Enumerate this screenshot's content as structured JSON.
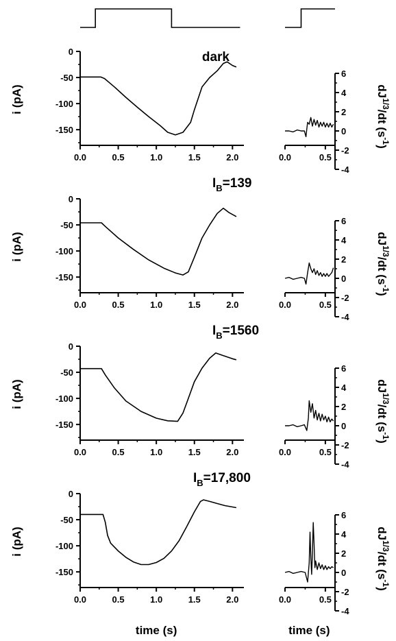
{
  "figure": {
    "axis_titles": {
      "left_y": "i (pA)",
      "right_y_main": "dJ",
      "right_y_exp": "1/3",
      "right_y_tail": "/dt  (s",
      "right_y_exp2": "-1",
      "right_y_end": ")",
      "x_left": "time (s)",
      "x_right": "time (s)"
    },
    "panel_labels": [
      {
        "text": "dark",
        "base": "",
        "sub": "",
        "rest": ""
      },
      {
        "text": "",
        "base": "I",
        "sub": "B",
        "rest": "=139"
      },
      {
        "text": "",
        "base": "I",
        "sub": "B",
        "rest": "=1560"
      },
      {
        "text": "",
        "base": "I",
        "sub": "B",
        "rest": "=17,800"
      }
    ],
    "left_axes": {
      "xlim": [
        0,
        2.15
      ],
      "ylim": [
        -180,
        0
      ],
      "xticks": [
        "0.0",
        "0.5",
        "1.0",
        "1.5",
        "2.0"
      ],
      "yticks": [
        "0",
        "-50",
        "-100",
        "-150"
      ]
    },
    "right_axes": {
      "xlim": [
        0,
        0.62
      ],
      "ylim": [
        -4,
        7
      ],
      "xticks": [
        "0.0",
        "0.5"
      ],
      "yticks": [
        "6",
        "4",
        "2",
        "0",
        "-2",
        "-4"
      ]
    },
    "stimulus": {
      "left": {
        "on": 0.2,
        "off": 1.2,
        "x_end": 2.1
      },
      "right": {
        "on": 0.2,
        "x_end": 0.62
      }
    },
    "colors": {
      "line": "#000000",
      "background": "#ffffff"
    }
  },
  "chart_data": [
    {
      "type": "line",
      "panel": 1,
      "title": "dark",
      "xlabel": "",
      "ylabel": "i (pA)",
      "xlim": [
        0,
        2.15
      ],
      "ylim": [
        -180,
        0
      ],
      "series": [
        {
          "points": [
            [
              0.0,
              -49
            ],
            [
              0.27,
              -49
            ],
            [
              0.32,
              -52
            ],
            [
              0.45,
              -68
            ],
            [
              0.6,
              -88
            ],
            [
              0.75,
              -107
            ],
            [
              0.9,
              -125
            ],
            [
              1.05,
              -142
            ],
            [
              1.15,
              -155
            ],
            [
              1.25,
              -160
            ],
            [
              1.35,
              -155
            ],
            [
              1.45,
              -136
            ],
            [
              1.5,
              -112
            ],
            [
              1.6,
              -68
            ],
            [
              1.7,
              -50
            ],
            [
              1.8,
              -37
            ],
            [
              1.88,
              -23
            ],
            [
              1.93,
              -20
            ],
            [
              2.0,
              -27
            ],
            [
              2.05,
              -30
            ]
          ]
        }
      ]
    },
    {
      "type": "line",
      "panel": 1,
      "xlabel": "",
      "ylabel": "dJ1/3/dt (s-1)",
      "xlim": [
        0,
        0.62
      ],
      "ylim": [
        -4,
        7
      ],
      "series": [
        {
          "points": [
            [
              0.0,
              0.0
            ],
            [
              0.05,
              0.0
            ],
            [
              0.1,
              -0.1
            ],
            [
              0.15,
              0.1
            ],
            [
              0.2,
              0.0
            ],
            [
              0.24,
              0.0
            ],
            [
              0.26,
              -0.6
            ],
            [
              0.27,
              0.2
            ],
            [
              0.28,
              0.9
            ],
            [
              0.3,
              0.7
            ],
            [
              0.32,
              1.4
            ],
            [
              0.34,
              0.5
            ],
            [
              0.36,
              1.2
            ],
            [
              0.38,
              0.6
            ],
            [
              0.4,
              1.1
            ],
            [
              0.42,
              0.4
            ],
            [
              0.44,
              0.9
            ],
            [
              0.46,
              0.5
            ],
            [
              0.48,
              0.9
            ],
            [
              0.5,
              0.4
            ],
            [
              0.52,
              0.8
            ],
            [
              0.54,
              0.4
            ],
            [
              0.56,
              0.8
            ],
            [
              0.58,
              0.4
            ],
            [
              0.6,
              0.7
            ]
          ]
        }
      ]
    },
    {
      "type": "line",
      "panel": 2,
      "xlabel": "",
      "ylabel": "i (pA)",
      "xlim": [
        0,
        2.15
      ],
      "ylim": [
        -180,
        0
      ],
      "series": [
        {
          "points": [
            [
              0.0,
              -46
            ],
            [
              0.28,
              -46
            ],
            [
              0.33,
              -53
            ],
            [
              0.5,
              -75
            ],
            [
              0.7,
              -97
            ],
            [
              0.9,
              -117
            ],
            [
              1.1,
              -133
            ],
            [
              1.25,
              -142
            ],
            [
              1.35,
              -146
            ],
            [
              1.42,
              -140
            ],
            [
              1.5,
              -112
            ],
            [
              1.6,
              -75
            ],
            [
              1.7,
              -50
            ],
            [
              1.8,
              -28
            ],
            [
              1.88,
              -18
            ],
            [
              1.95,
              -26
            ],
            [
              2.05,
              -34
            ]
          ]
        }
      ]
    },
    {
      "type": "line",
      "panel": 2,
      "xlabel": "",
      "ylabel": "dJ1/3/dt (s-1)",
      "xlim": [
        0,
        0.62
      ],
      "ylim": [
        -4,
        7
      ],
      "series": [
        {
          "points": [
            [
              0.0,
              0.0
            ],
            [
              0.05,
              0.1
            ],
            [
              0.1,
              -0.1
            ],
            [
              0.15,
              0.0
            ],
            [
              0.2,
              0.1
            ],
            [
              0.24,
              0.0
            ],
            [
              0.26,
              -0.6
            ],
            [
              0.28,
              0.6
            ],
            [
              0.3,
              1.6
            ],
            [
              0.32,
              1.0
            ],
            [
              0.34,
              0.6
            ],
            [
              0.36,
              1.0
            ],
            [
              0.38,
              0.4
            ],
            [
              0.4,
              0.8
            ],
            [
              0.42,
              0.3
            ],
            [
              0.44,
              0.6
            ],
            [
              0.46,
              0.2
            ],
            [
              0.48,
              0.5
            ],
            [
              0.5,
              0.2
            ],
            [
              0.52,
              0.5
            ],
            [
              0.54,
              0.2
            ],
            [
              0.56,
              0.4
            ],
            [
              0.58,
              0.6
            ],
            [
              0.6,
              1.1
            ]
          ]
        }
      ]
    },
    {
      "type": "line",
      "panel": 3,
      "xlabel": "",
      "ylabel": "i (pA)",
      "xlim": [
        0,
        2.15
      ],
      "ylim": [
        -180,
        0
      ],
      "series": [
        {
          "points": [
            [
              0.0,
              -43
            ],
            [
              0.28,
              -43
            ],
            [
              0.33,
              -55
            ],
            [
              0.45,
              -80
            ],
            [
              0.6,
              -105
            ],
            [
              0.8,
              -125
            ],
            [
              1.0,
              -138
            ],
            [
              1.15,
              -143
            ],
            [
              1.28,
              -144
            ],
            [
              1.35,
              -128
            ],
            [
              1.42,
              -100
            ],
            [
              1.5,
              -68
            ],
            [
              1.6,
              -42
            ],
            [
              1.7,
              -23
            ],
            [
              1.78,
              -13
            ],
            [
              1.88,
              -18
            ],
            [
              2.0,
              -24
            ],
            [
              2.05,
              -26
            ]
          ]
        }
      ]
    },
    {
      "type": "line",
      "panel": 3,
      "xlabel": "",
      "ylabel": "dJ1/3/dt (s-1)",
      "xlim": [
        0,
        0.62
      ],
      "ylim": [
        -4,
        7
      ],
      "series": [
        {
          "points": [
            [
              0.0,
              0.0
            ],
            [
              0.05,
              0.0
            ],
            [
              0.1,
              0.1
            ],
            [
              0.15,
              -0.1
            ],
            [
              0.2,
              0.0
            ],
            [
              0.24,
              0.1
            ],
            [
              0.27,
              -0.5
            ],
            [
              0.29,
              0.8
            ],
            [
              0.3,
              2.6
            ],
            [
              0.32,
              1.4
            ],
            [
              0.34,
              2.3
            ],
            [
              0.36,
              0.8
            ],
            [
              0.38,
              1.6
            ],
            [
              0.4,
              0.6
            ],
            [
              0.42,
              1.3
            ],
            [
              0.44,
              0.5
            ],
            [
              0.46,
              1.2
            ],
            [
              0.48,
              0.6
            ],
            [
              0.5,
              1.0
            ],
            [
              0.52,
              0.4
            ],
            [
              0.54,
              0.9
            ],
            [
              0.56,
              0.4
            ],
            [
              0.58,
              0.7
            ],
            [
              0.6,
              0.5
            ]
          ]
        }
      ]
    },
    {
      "type": "line",
      "panel": 4,
      "xlabel": "time (s)",
      "ylabel": "i (pA)",
      "xlim": [
        0,
        2.15
      ],
      "ylim": [
        -180,
        0
      ],
      "series": [
        {
          "points": [
            [
              0.0,
              -40
            ],
            [
              0.3,
              -40
            ],
            [
              0.33,
              -55
            ],
            [
              0.36,
              -80
            ],
            [
              0.4,
              -95
            ],
            [
              0.5,
              -110
            ],
            [
              0.6,
              -122
            ],
            [
              0.7,
              -131
            ],
            [
              0.8,
              -136
            ],
            [
              0.9,
              -136
            ],
            [
              1.0,
              -132
            ],
            [
              1.1,
              -124
            ],
            [
              1.2,
              -110
            ],
            [
              1.3,
              -90
            ],
            [
              1.4,
              -63
            ],
            [
              1.5,
              -35
            ],
            [
              1.58,
              -15
            ],
            [
              1.62,
              -12
            ],
            [
              1.7,
              -15
            ],
            [
              1.8,
              -19
            ],
            [
              1.9,
              -23
            ],
            [
              2.05,
              -27
            ]
          ]
        }
      ]
    },
    {
      "type": "line",
      "panel": 4,
      "xlabel": "time (s)",
      "ylabel": "dJ1/3/dt (s-1)",
      "xlim": [
        0,
        0.62
      ],
      "ylim": [
        -4,
        7
      ],
      "series": [
        {
          "points": [
            [
              0.0,
              0.0
            ],
            [
              0.05,
              0.1
            ],
            [
              0.1,
              -0.1
            ],
            [
              0.15,
              0.0
            ],
            [
              0.2,
              0.1
            ],
            [
              0.25,
              0.0
            ],
            [
              0.28,
              -1.0
            ],
            [
              0.3,
              1.0
            ],
            [
              0.31,
              4.2
            ],
            [
              0.32,
              1.5
            ],
            [
              0.33,
              -0.2
            ],
            [
              0.34,
              2.0
            ],
            [
              0.35,
              5.2
            ],
            [
              0.36,
              3.0
            ],
            [
              0.37,
              0.5
            ],
            [
              0.38,
              1.2
            ],
            [
              0.4,
              0.3
            ],
            [
              0.42,
              1.0
            ],
            [
              0.44,
              0.4
            ],
            [
              0.46,
              0.8
            ],
            [
              0.48,
              0.3
            ],
            [
              0.5,
              0.7
            ],
            [
              0.52,
              0.3
            ],
            [
              0.54,
              0.6
            ],
            [
              0.56,
              0.4
            ],
            [
              0.58,
              0.6
            ],
            [
              0.6,
              0.5
            ]
          ]
        }
      ]
    }
  ]
}
